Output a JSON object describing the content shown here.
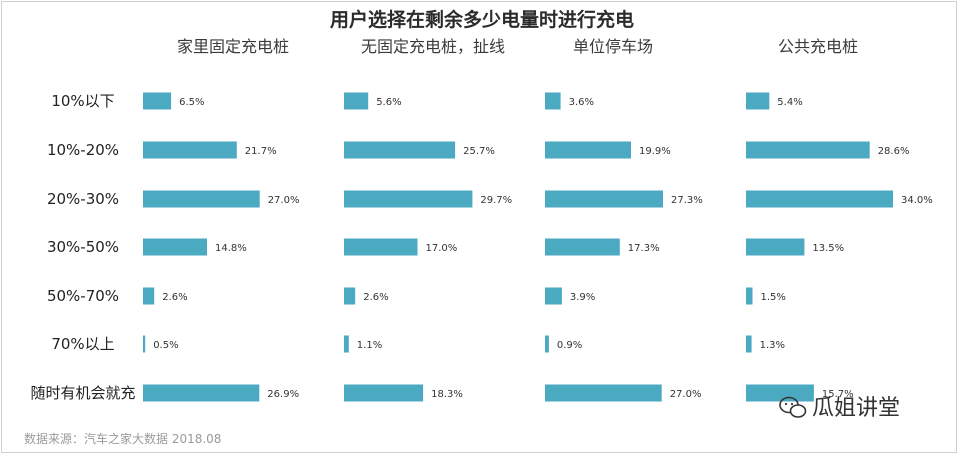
{
  "chart_data": {
    "type": "bar",
    "title": "用户选择在剩余多少电量时进行充电",
    "categories": [
      "10%以下",
      "10%-20%",
      "20%-30%",
      "30%-50%",
      "50%-70%",
      "70%以上",
      "随时有机会就充"
    ],
    "panels": [
      {
        "name": "家里固定充电桩",
        "values": [
          6.5,
          21.7,
          27.0,
          14.8,
          2.6,
          0.5,
          26.9
        ],
        "labels": [
          "6.5%",
          "21.7%",
          "27.0%",
          "14.8%",
          "2.6%",
          "0.5%",
          "26.9%"
        ]
      },
      {
        "name": "无固定充电桩，扯线",
        "values": [
          5.6,
          25.7,
          29.7,
          17.0,
          2.6,
          1.1,
          18.3
        ],
        "labels": [
          "5.6%",
          "25.7%",
          "29.7%",
          "17.0%",
          "2.6%",
          "1.1%",
          "18.3%"
        ]
      },
      {
        "name": "单位停车场",
        "values": [
          3.6,
          19.9,
          27.3,
          17.3,
          3.9,
          0.9,
          27.0
        ],
        "labels": [
          "3.6%",
          "19.9%",
          "27.3%",
          "17.3%",
          "3.9%",
          "0.9%",
          "27.0%"
        ]
      },
      {
        "name": "公共充电桩",
        "values": [
          5.4,
          28.6,
          34.0,
          13.5,
          1.5,
          1.3,
          15.7
        ],
        "labels": [
          "5.4%",
          "28.6%",
          "34.0%",
          "13.5%",
          "1.5%",
          "1.3%",
          "15.7%"
        ]
      }
    ],
    "bar_color": "#4ba9c2",
    "source": "数据来源：汽车之家大数据 2018.08"
  },
  "watermark": {
    "text": "瓜姐讲堂",
    "icon": "wechat-icon"
  }
}
